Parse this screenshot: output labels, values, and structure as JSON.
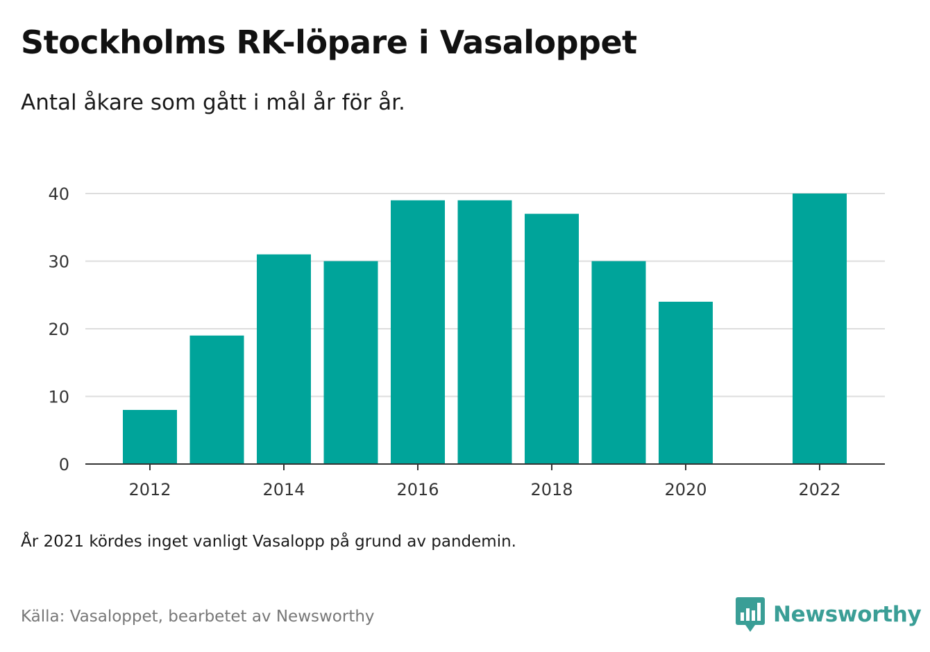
{
  "header": {
    "title": "Stockholms RK-löpare i Vasaloppet",
    "subtitle": "Antal åkare som gått i mål år för år."
  },
  "footer": {
    "note": "År 2021 kördes inget vanligt Vasalopp på grund av pandemin.",
    "source": "Källa: Vasaloppet, bearbetet av Newsworthy",
    "brand": "Newsworthy"
  },
  "colors": {
    "bar": "#00a49a",
    "grid": "#dddddd",
    "axis": "#333333",
    "brand": "#3a9e96"
  },
  "icons": {
    "brand_logo": "bar-chart-speech-bubble-icon"
  },
  "chart_data": {
    "type": "bar",
    "title": "Stockholms RK-löpare i Vasaloppet",
    "subtitle": "Antal åkare som gått i mål år för år.",
    "xlabel": "",
    "ylabel": "",
    "categories": [
      2012,
      2013,
      2014,
      2015,
      2016,
      2017,
      2018,
      2019,
      2020,
      2021,
      2022
    ],
    "values": [
      8,
      19,
      31,
      30,
      39,
      39,
      37,
      30,
      24,
      null,
      40
    ],
    "x_tick_labels": [
      "2012",
      "2014",
      "2016",
      "2018",
      "2020",
      "2022"
    ],
    "y_ticks": [
      0,
      10,
      20,
      30,
      40
    ],
    "ylim": [
      0,
      40
    ],
    "grid": "horizontal",
    "legend": "none"
  }
}
